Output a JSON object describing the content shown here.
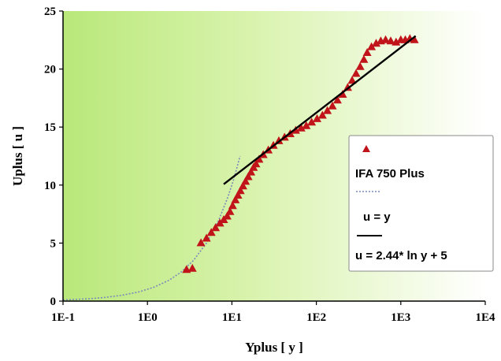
{
  "chart_data": {
    "type": "scatter",
    "title": "",
    "xlabel": "Yplus [ y ]",
    "ylabel": "Uplus [ u ]",
    "xscale": "log",
    "xlim": [
      0.1,
      10000
    ],
    "ylim": [
      0,
      25
    ],
    "x_ticks": [
      "1E-1",
      "1E0",
      "1E1",
      "1E2",
      "1E3",
      "1E4"
    ],
    "y_ticks": [
      "0",
      "5",
      "10",
      "15",
      "20",
      "25"
    ],
    "grid": false,
    "legend_position": "right",
    "background": "light green gradient",
    "colors": {
      "marker": "#c0141a",
      "dotted_line": "#7a8ab8",
      "log_line": "#000000"
    },
    "series": [
      {
        "name": "IFA 750 Plus",
        "kind": "marker",
        "marker": "triangle",
        "points": [
          [
            2.9,
            2.7
          ],
          [
            3.4,
            2.8
          ],
          [
            4.3,
            5.0
          ],
          [
            5.0,
            5.4
          ],
          [
            5.7,
            5.9
          ],
          [
            6.4,
            6.3
          ],
          [
            7.2,
            6.7
          ],
          [
            8.0,
            7.0
          ],
          [
            8.8,
            7.3
          ],
          [
            9.5,
            7.7
          ],
          [
            10.2,
            8.2
          ],
          [
            11.0,
            8.7
          ],
          [
            11.8,
            9.1
          ],
          [
            12.6,
            9.5
          ],
          [
            13.5,
            9.9
          ],
          [
            14.5,
            10.3
          ],
          [
            15.6,
            10.7
          ],
          [
            16.8,
            11.1
          ],
          [
            18.0,
            11.5
          ],
          [
            19.3,
            11.8
          ],
          [
            21.0,
            12.2
          ],
          [
            23.5,
            12.6
          ],
          [
            27.0,
            13.0
          ],
          [
            31.0,
            13.4
          ],
          [
            36.0,
            13.8
          ],
          [
            42.0,
            14.1
          ],
          [
            49.0,
            14.4
          ],
          [
            57.0,
            14.7
          ],
          [
            66.0,
            14.9
          ],
          [
            76.0,
            15.1
          ],
          [
            88.0,
            15.4
          ],
          [
            102.0,
            15.7
          ],
          [
            118.0,
            16.0
          ],
          [
            135.0,
            16.4
          ],
          [
            155.0,
            16.8
          ],
          [
            178.0,
            17.3
          ],
          [
            205.0,
            17.8
          ],
          [
            235.0,
            18.4
          ],
          [
            265.0,
            19.0
          ],
          [
            295.0,
            19.6
          ],
          [
            330.0,
            20.2
          ],
          [
            365.0,
            20.8
          ],
          [
            400.0,
            21.4
          ],
          [
            450.0,
            21.9
          ],
          [
            510.0,
            22.2
          ],
          [
            580.0,
            22.4
          ],
          [
            660.0,
            22.5
          ],
          [
            760.0,
            22.4
          ],
          [
            880.0,
            22.3
          ],
          [
            1000.0,
            22.5
          ],
          [
            1130.0,
            22.5
          ],
          [
            1280.0,
            22.6
          ],
          [
            1450.0,
            22.5
          ]
        ]
      },
      {
        "name": "u = y",
        "kind": "dotted-line",
        "x": [
          0.1,
          0.2,
          0.3,
          0.5,
          0.8,
          1.2,
          1.8,
          2.5,
          3.5,
          5,
          7,
          9,
          10.5,
          12.5
        ],
        "y": [
          0.1,
          0.2,
          0.3,
          0.5,
          0.8,
          1.2,
          1.8,
          2.5,
          3.5,
          5,
          7,
          9,
          10.5,
          12.5
        ]
      },
      {
        "name": "u = 2.44* ln y + 5",
        "kind": "line",
        "equation": "u = 2.44*ln(y) + 5",
        "x_range": [
          8,
          1500
        ]
      }
    ]
  }
}
